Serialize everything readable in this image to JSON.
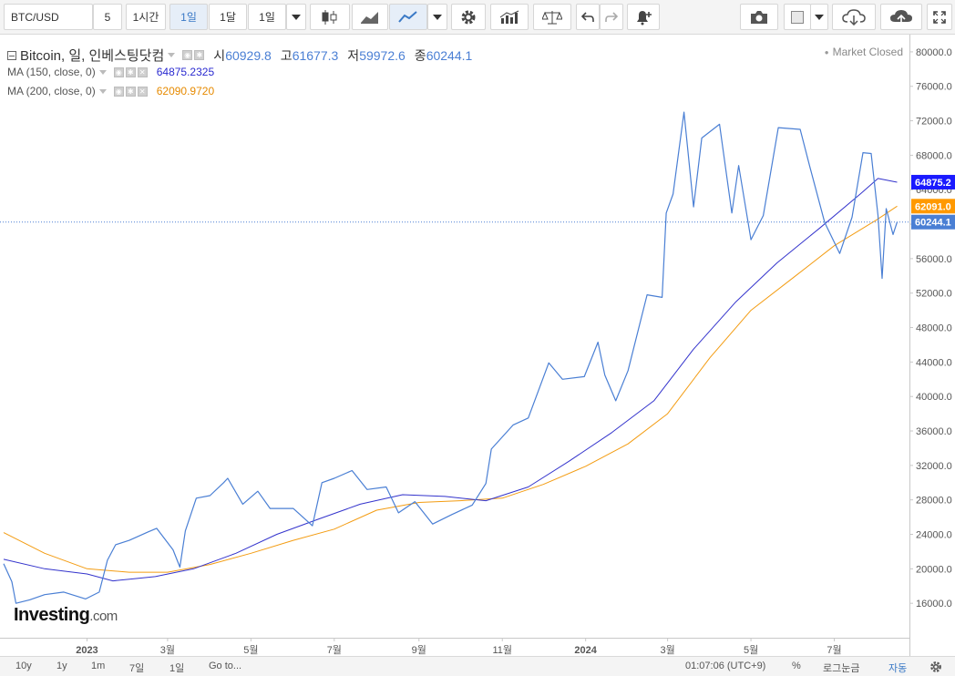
{
  "toolbar": {
    "symbol": "BTC/USD",
    "intervals": [
      "5",
      "1시간",
      "1일",
      "1달",
      "1일"
    ],
    "active_interval": "1일"
  },
  "legend": {
    "title": "Bitcoin, 일, 인베스팅닷컴",
    "open_label": "시",
    "open": "60929.8",
    "high_label": "고",
    "high": "61677.3",
    "low_label": "저",
    "low": "59972.6",
    "close_label": "종",
    "close": "60244.1",
    "ma150_label": "MA (150, close, 0)",
    "ma150_value": "64875.2325",
    "ma200_label": "MA (200, close, 0)",
    "ma200_value": "62090.9720"
  },
  "status": {
    "market": "Market Closed"
  },
  "logo": {
    "name": "Investing",
    "suffix": ".com"
  },
  "bottombar": {
    "ranges": [
      "10y",
      "1y",
      "1m",
      "7일",
      "1일"
    ],
    "goto": "Go to...",
    "time": "01:07:06 (UTC+9)",
    "percent": "%",
    "log": "로그눈금",
    "auto": "자동"
  },
  "colors": {
    "price_line": "#4a7fd4",
    "ma150": "#3333cc",
    "ma200": "#f39c12",
    "last_price_label": "#4a7fd4",
    "ma150_label": "#1a1aff",
    "ma200_label": "#ff9900"
  },
  "chart_data": {
    "type": "line",
    "title": "Bitcoin, 일, 인베스팅닷컴",
    "ylim": [
      12000,
      82000
    ],
    "y_ticks": [
      16000,
      20000,
      24000,
      28000,
      32000,
      36000,
      40000,
      44000,
      48000,
      52000,
      56000,
      60000,
      64000,
      68000,
      72000,
      76000,
      80000
    ],
    "y_tick_labels": [
      "16000.0",
      "20000.0",
      "24000.0",
      "28000.0",
      "32000.0",
      "36000.0",
      "40000.0",
      "44000.0",
      "48000.0",
      "52000.0",
      "56000.0",
      "60000.0",
      "64000.0",
      "68000.0",
      "72000.0",
      "76000.0",
      "80000.0"
    ],
    "xlim": [
      "2022-11-01",
      "2024-08-25"
    ],
    "x_ticks": [
      "2023-01-01",
      "2023-03-01",
      "2023-05-01",
      "2023-07-01",
      "2023-09-01",
      "2023-11-01",
      "2024-01-01",
      "2024-03-01",
      "2024-05-01",
      "2024-07-01"
    ],
    "x_tick_labels": [
      "2023",
      "3월",
      "5월",
      "7월",
      "9월",
      "11월",
      "2024",
      "3월",
      "5월",
      "7월"
    ],
    "series": [
      {
        "name": "Bitcoin",
        "points": [
          [
            "2022-11-01",
            20600
          ],
          [
            "2022-11-07",
            18500
          ],
          [
            "2022-11-10",
            16000
          ],
          [
            "2022-11-20",
            16400
          ],
          [
            "2022-12-01",
            17000
          ],
          [
            "2022-12-15",
            17300
          ],
          [
            "2022-12-31",
            16500
          ],
          [
            "2023-01-10",
            17300
          ],
          [
            "2023-01-16",
            21000
          ],
          [
            "2023-01-22",
            22800
          ],
          [
            "2023-02-01",
            23300
          ],
          [
            "2023-02-15",
            24300
          ],
          [
            "2023-02-21",
            24700
          ],
          [
            "2023-03-05",
            22200
          ],
          [
            "2023-03-10",
            20200
          ],
          [
            "2023-03-14",
            24400
          ],
          [
            "2023-03-22",
            28200
          ],
          [
            "2023-04-01",
            28500
          ],
          [
            "2023-04-11",
            30000
          ],
          [
            "2023-04-14",
            30500
          ],
          [
            "2023-04-25",
            27500
          ],
          [
            "2023-05-06",
            29000
          ],
          [
            "2023-05-15",
            27000
          ],
          [
            "2023-06-01",
            27000
          ],
          [
            "2023-06-15",
            25000
          ],
          [
            "2023-06-22",
            30000
          ],
          [
            "2023-07-01",
            30500
          ],
          [
            "2023-07-14",
            31400
          ],
          [
            "2023-07-25",
            29200
          ],
          [
            "2023-08-08",
            29500
          ],
          [
            "2023-08-17",
            26500
          ],
          [
            "2023-08-29",
            27800
          ],
          [
            "2023-09-11",
            25200
          ],
          [
            "2023-09-25",
            26300
          ],
          [
            "2023-10-10",
            27400
          ],
          [
            "2023-10-20",
            29900
          ],
          [
            "2023-10-24",
            33900
          ],
          [
            "2023-11-09",
            36700
          ],
          [
            "2023-11-20",
            37500
          ],
          [
            "2023-12-05",
            43900
          ],
          [
            "2023-12-15",
            42000
          ],
          [
            "2023-12-31",
            42300
          ],
          [
            "2024-01-10",
            46300
          ],
          [
            "2024-01-15",
            42500
          ],
          [
            "2024-01-23",
            39500
          ],
          [
            "2024-02-01",
            43000
          ],
          [
            "2024-02-15",
            51800
          ],
          [
            "2024-02-26",
            51500
          ],
          [
            "2024-02-29",
            61300
          ],
          [
            "2024-03-05",
            63500
          ],
          [
            "2024-03-13",
            73000
          ],
          [
            "2024-03-20",
            62000
          ],
          [
            "2024-03-26",
            70000
          ],
          [
            "2024-04-08",
            71600
          ],
          [
            "2024-04-17",
            61300
          ],
          [
            "2024-04-22",
            66800
          ],
          [
            "2024-05-01",
            58200
          ],
          [
            "2024-05-10",
            61000
          ],
          [
            "2024-05-21",
            71200
          ],
          [
            "2024-06-06",
            71000
          ],
          [
            "2024-06-13",
            66700
          ],
          [
            "2024-06-24",
            60200
          ],
          [
            "2024-07-05",
            56600
          ],
          [
            "2024-07-14",
            60800
          ],
          [
            "2024-07-22",
            68300
          ],
          [
            "2024-07-28",
            68200
          ],
          [
            "2024-08-02",
            61000
          ],
          [
            "2024-08-05",
            53700
          ],
          [
            "2024-08-08",
            61800
          ],
          [
            "2024-08-13",
            58800
          ],
          [
            "2024-08-16",
            60244
          ]
        ]
      },
      {
        "name": "MA (150, close, 0)",
        "points": [
          [
            "2022-11-01",
            21100
          ],
          [
            "2022-12-01",
            20000
          ],
          [
            "2023-01-01",
            19400
          ],
          [
            "2023-01-20",
            18600
          ],
          [
            "2023-02-20",
            19100
          ],
          [
            "2023-03-20",
            20000
          ],
          [
            "2023-04-20",
            21800
          ],
          [
            "2023-05-20",
            24000
          ],
          [
            "2023-06-20",
            25800
          ],
          [
            "2023-07-20",
            27500
          ],
          [
            "2023-08-20",
            28600
          ],
          [
            "2023-09-20",
            28400
          ],
          [
            "2023-10-20",
            27900
          ],
          [
            "2023-11-20",
            29500
          ],
          [
            "2023-12-20",
            32500
          ],
          [
            "2024-01-20",
            35800
          ],
          [
            "2024-02-20",
            39500
          ],
          [
            "2024-03-20",
            45500
          ],
          [
            "2024-04-20",
            51000
          ],
          [
            "2024-05-20",
            55500
          ],
          [
            "2024-06-20",
            59500
          ],
          [
            "2024-07-20",
            63500
          ],
          [
            "2024-08-02",
            65300
          ],
          [
            "2024-08-16",
            64875
          ]
        ]
      },
      {
        "name": "MA (200, close, 0)",
        "points": [
          [
            "2022-11-01",
            24200
          ],
          [
            "2022-12-01",
            21800
          ],
          [
            "2023-01-01",
            20000
          ],
          [
            "2023-02-01",
            19600
          ],
          [
            "2023-03-01",
            19600
          ],
          [
            "2023-04-01",
            20500
          ],
          [
            "2023-05-01",
            21800
          ],
          [
            "2023-06-01",
            23300
          ],
          [
            "2023-07-01",
            24600
          ],
          [
            "2023-08-01",
            26800
          ],
          [
            "2023-09-01",
            27700
          ],
          [
            "2023-10-01",
            27900
          ],
          [
            "2023-11-01",
            28200
          ],
          [
            "2023-12-01",
            29800
          ],
          [
            "2024-01-01",
            31900
          ],
          [
            "2024-02-01",
            34500
          ],
          [
            "2024-03-01",
            38000
          ],
          [
            "2024-04-01",
            44500
          ],
          [
            "2024-05-01",
            50000
          ],
          [
            "2024-06-01",
            53800
          ],
          [
            "2024-07-01",
            57500
          ],
          [
            "2024-08-01",
            60500
          ],
          [
            "2024-08-16",
            62091
          ]
        ]
      }
    ],
    "price_labels": [
      {
        "name": "MA (150, close, 0)",
        "text": "64875.2",
        "value": 64875.2
      },
      {
        "name": "MA (200, close, 0)",
        "text": "62091.0",
        "value": 62091.0
      },
      {
        "name": "Bitcoin",
        "text": "60244.1",
        "value": 60244.1
      }
    ],
    "last_price": 60244.1,
    "grid": false,
    "legend_position": "top-left"
  }
}
